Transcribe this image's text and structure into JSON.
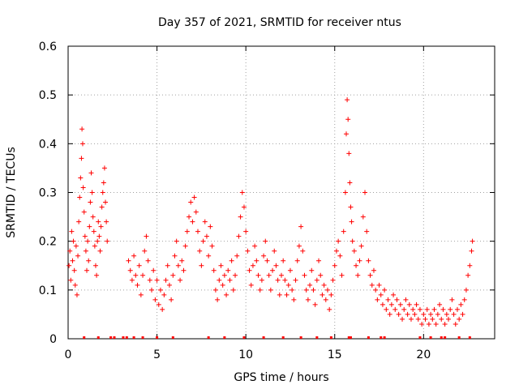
{
  "chart_data": {
    "type": "scatter",
    "title": "Day 357 of 2021, SRMTID for receiver ntus",
    "xlabel": "GPS time / hours",
    "ylabel": "SRMTID / TECUs",
    "xlim": [
      0,
      24
    ],
    "ylim": [
      0,
      0.6
    ],
    "xticks": [
      0,
      5,
      10,
      15,
      20
    ],
    "xtick_labels": [
      "0",
      "5",
      "10",
      "15",
      "20"
    ],
    "yticks": [
      0,
      0.1,
      0.2,
      0.3,
      0.4,
      0.5,
      0.6
    ],
    "ytick_labels": [
      "0",
      "0.1",
      "0.2",
      "0.3",
      "0.4",
      "0.5",
      "0.6"
    ],
    "grid": true,
    "marker": "plus",
    "marker_color": "#ff0000",
    "series": [
      {
        "name": "SRMTID",
        "points": [
          [
            0.05,
            0.15
          ],
          [
            0.1,
            0.18
          ],
          [
            0.15,
            0.12
          ],
          [
            0.2,
            0.22
          ],
          [
            0.25,
            0.16
          ],
          [
            0.3,
            0.2
          ],
          [
            0.35,
            0.14
          ],
          [
            0.4,
            0.11
          ],
          [
            0.45,
            0.19
          ],
          [
            0.5,
            0.09
          ],
          [
            0.55,
            0.17
          ],
          [
            0.6,
            0.24
          ],
          [
            0.65,
            0.29
          ],
          [
            0.7,
            0.33
          ],
          [
            0.75,
            0.37
          ],
          [
            0.78,
            0.43
          ],
          [
            0.82,
            0.4
          ],
          [
            0.85,
            0.31
          ],
          [
            0.9,
            0.26
          ],
          [
            0.95,
            0.21
          ],
          [
            1.0,
            0.18
          ],
          [
            1.05,
            0.14
          ],
          [
            1.1,
            0.2
          ],
          [
            1.15,
            0.16
          ],
          [
            1.2,
            0.23
          ],
          [
            1.25,
            0.28
          ],
          [
            1.3,
            0.34
          ],
          [
            1.35,
            0.3
          ],
          [
            1.4,
            0.25
          ],
          [
            1.45,
            0.22
          ],
          [
            1.5,
            0.19
          ],
          [
            1.55,
            0.15
          ],
          [
            1.6,
            0.13
          ],
          [
            1.65,
            0.2
          ],
          [
            1.7,
            0.24
          ],
          [
            1.75,
            0.21
          ],
          [
            1.8,
            0.18
          ],
          [
            1.85,
            0.23
          ],
          [
            1.9,
            0.27
          ],
          [
            1.95,
            0.3
          ],
          [
            2.0,
            0.32
          ],
          [
            2.05,
            0.35
          ],
          [
            2.1,
            0.28
          ],
          [
            2.15,
            0.24
          ],
          [
            2.2,
            0.2
          ],
          [
            3.4,
            0.16
          ],
          [
            3.5,
            0.14
          ],
          [
            3.6,
            0.12
          ],
          [
            3.7,
            0.17
          ],
          [
            3.8,
            0.13
          ],
          [
            3.9,
            0.11
          ],
          [
            4.0,
            0.15
          ],
          [
            4.1,
            0.09
          ],
          [
            4.2,
            0.13
          ],
          [
            4.3,
            0.18
          ],
          [
            4.4,
            0.21
          ],
          [
            4.5,
            0.16
          ],
          [
            4.6,
            0.12
          ],
          [
            4.7,
            0.1
          ],
          [
            4.8,
            0.14
          ],
          [
            4.9,
            0.08
          ],
          [
            5.0,
            0.12
          ],
          [
            5.1,
            0.07
          ],
          [
            5.2,
            0.1
          ],
          [
            5.3,
            0.06
          ],
          [
            5.4,
            0.09
          ],
          [
            5.5,
            0.12
          ],
          [
            5.6,
            0.15
          ],
          [
            5.7,
            0.11
          ],
          [
            5.8,
            0.08
          ],
          [
            5.9,
            0.13
          ],
          [
            6.0,
            0.17
          ],
          [
            6.1,
            0.2
          ],
          [
            6.2,
            0.15
          ],
          [
            6.3,
            0.12
          ],
          [
            6.4,
            0.16
          ],
          [
            6.5,
            0.14
          ],
          [
            6.6,
            0.19
          ],
          [
            6.7,
            0.22
          ],
          [
            6.8,
            0.25
          ],
          [
            6.9,
            0.28
          ],
          [
            7.0,
            0.24
          ],
          [
            7.1,
            0.29
          ],
          [
            7.2,
            0.26
          ],
          [
            7.3,
            0.22
          ],
          [
            7.4,
            0.18
          ],
          [
            7.5,
            0.15
          ],
          [
            7.6,
            0.2
          ],
          [
            7.7,
            0.24
          ],
          [
            7.8,
            0.21
          ],
          [
            7.9,
            0.17
          ],
          [
            8.0,
            0.23
          ],
          [
            8.1,
            0.19
          ],
          [
            8.2,
            0.14
          ],
          [
            8.3,
            0.1
          ],
          [
            8.4,
            0.08
          ],
          [
            8.5,
            0.12
          ],
          [
            8.6,
            0.15
          ],
          [
            8.7,
            0.11
          ],
          [
            8.8,
            0.13
          ],
          [
            8.9,
            0.09
          ],
          [
            9.0,
            0.14
          ],
          [
            9.1,
            0.12
          ],
          [
            9.2,
            0.16
          ],
          [
            9.3,
            0.1
          ],
          [
            9.4,
            0.13
          ],
          [
            9.5,
            0.17
          ],
          [
            9.6,
            0.21
          ],
          [
            9.7,
            0.25
          ],
          [
            9.8,
            0.3
          ],
          [
            9.9,
            0.27
          ],
          [
            10.0,
            0.22
          ],
          [
            10.1,
            0.18
          ],
          [
            10.2,
            0.14
          ],
          [
            10.3,
            0.11
          ],
          [
            10.4,
            0.15
          ],
          [
            10.5,
            0.19
          ],
          [
            10.6,
            0.16
          ],
          [
            10.7,
            0.13
          ],
          [
            10.8,
            0.1
          ],
          [
            10.9,
            0.12
          ],
          [
            11.0,
            0.17
          ],
          [
            11.1,
            0.2
          ],
          [
            11.2,
            0.16
          ],
          [
            11.3,
            0.13
          ],
          [
            11.4,
            0.1
          ],
          [
            11.5,
            0.14
          ],
          [
            11.6,
            0.18
          ],
          [
            11.7,
            0.15
          ],
          [
            11.8,
            0.12
          ],
          [
            11.9,
            0.09
          ],
          [
            12.0,
            0.13
          ],
          [
            12.1,
            0.16
          ],
          [
            12.2,
            0.12
          ],
          [
            12.3,
            0.09
          ],
          [
            12.4,
            0.11
          ],
          [
            12.5,
            0.14
          ],
          [
            12.6,
            0.1
          ],
          [
            12.7,
            0.08
          ],
          [
            12.8,
            0.12
          ],
          [
            12.9,
            0.16
          ],
          [
            13.0,
            0.19
          ],
          [
            13.1,
            0.23
          ],
          [
            13.2,
            0.18
          ],
          [
            13.3,
            0.13
          ],
          [
            13.4,
            0.1
          ],
          [
            13.5,
            0.08
          ],
          [
            13.6,
            0.11
          ],
          [
            13.7,
            0.14
          ],
          [
            13.8,
            0.1
          ],
          [
            13.9,
            0.07
          ],
          [
            14.0,
            0.12
          ],
          [
            14.1,
            0.16
          ],
          [
            14.2,
            0.13
          ],
          [
            14.3,
            0.09
          ],
          [
            14.4,
            0.11
          ],
          [
            14.5,
            0.08
          ],
          [
            14.6,
            0.1
          ],
          [
            14.7,
            0.06
          ],
          [
            14.8,
            0.09
          ],
          [
            14.9,
            0.12
          ],
          [
            15.0,
            0.15
          ],
          [
            15.1,
            0.18
          ],
          [
            15.2,
            0.2
          ],
          [
            15.3,
            0.17
          ],
          [
            15.4,
            0.13
          ],
          [
            15.5,
            0.22
          ],
          [
            15.6,
            0.3
          ],
          [
            15.65,
            0.42
          ],
          [
            15.7,
            0.49
          ],
          [
            15.75,
            0.45
          ],
          [
            15.8,
            0.38
          ],
          [
            15.85,
            0.32
          ],
          [
            15.9,
            0.27
          ],
          [
            15.95,
            0.24
          ],
          [
            16.0,
            0.2
          ],
          [
            16.1,
            0.18
          ],
          [
            16.2,
            0.15
          ],
          [
            16.3,
            0.13
          ],
          [
            16.4,
            0.16
          ],
          [
            16.5,
            0.19
          ],
          [
            16.6,
            0.25
          ],
          [
            16.7,
            0.3
          ],
          [
            16.8,
            0.22
          ],
          [
            16.9,
            0.16
          ],
          [
            17.0,
            0.13
          ],
          [
            17.1,
            0.11
          ],
          [
            17.2,
            0.14
          ],
          [
            17.3,
            0.1
          ],
          [
            17.4,
            0.08
          ],
          [
            17.5,
            0.11
          ],
          [
            17.6,
            0.09
          ],
          [
            17.7,
            0.07
          ],
          [
            17.8,
            0.1
          ],
          [
            17.9,
            0.06
          ],
          [
            18.0,
            0.08
          ],
          [
            18.1,
            0.05
          ],
          [
            18.2,
            0.07
          ],
          [
            18.3,
            0.09
          ],
          [
            18.4,
            0.06
          ],
          [
            18.5,
            0.08
          ],
          [
            18.6,
            0.05
          ],
          [
            18.7,
            0.07
          ],
          [
            18.8,
            0.04
          ],
          [
            18.9,
            0.06
          ],
          [
            19.0,
            0.08
          ],
          [
            19.1,
            0.05
          ],
          [
            19.2,
            0.07
          ],
          [
            19.3,
            0.04
          ],
          [
            19.4,
            0.06
          ],
          [
            19.5,
            0.05
          ],
          [
            19.6,
            0.07
          ],
          [
            19.7,
            0.04
          ],
          [
            19.8,
            0.06
          ],
          [
            19.9,
            0.03
          ],
          [
            20.0,
            0.05
          ],
          [
            20.1,
            0.04
          ],
          [
            20.2,
            0.06
          ],
          [
            20.3,
            0.03
          ],
          [
            20.4,
            0.05
          ],
          [
            20.5,
            0.04
          ],
          [
            20.6,
            0.06
          ],
          [
            20.7,
            0.03
          ],
          [
            20.8,
            0.05
          ],
          [
            20.9,
            0.07
          ],
          [
            21.0,
            0.04
          ],
          [
            21.1,
            0.06
          ],
          [
            21.2,
            0.03
          ],
          [
            21.3,
            0.05
          ],
          [
            21.4,
            0.04
          ],
          [
            21.5,
            0.06
          ],
          [
            21.6,
            0.08
          ],
          [
            21.7,
            0.05
          ],
          [
            21.8,
            0.03
          ],
          [
            21.9,
            0.06
          ],
          [
            22.0,
            0.04
          ],
          [
            22.1,
            0.07
          ],
          [
            22.2,
            0.05
          ],
          [
            22.3,
            0.08
          ],
          [
            22.4,
            0.1
          ],
          [
            22.5,
            0.13
          ],
          [
            22.6,
            0.15
          ],
          [
            22.7,
            0.18
          ],
          [
            22.75,
            0.2
          ]
        ]
      }
    ],
    "baseline_markers_x": [
      0.9,
      1.7,
      2.4,
      2.6,
      3.1,
      3.3,
      3.7,
      4.2,
      5.0,
      5.9,
      7.9,
      8.8,
      9.9,
      11.0,
      12.1,
      13.1,
      14.0,
      14.8,
      15.8,
      15.9,
      16.9,
      17.6,
      17.8,
      19.8,
      20.4,
      21.0,
      21.2,
      22.0,
      22.6
    ]
  }
}
